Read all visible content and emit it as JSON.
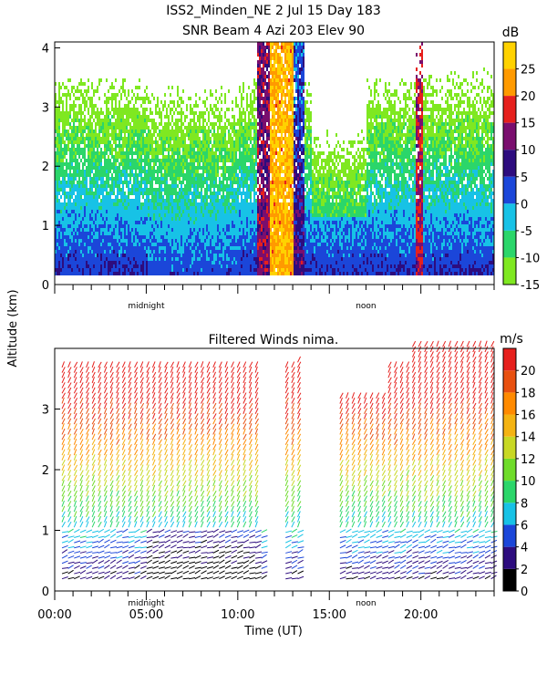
{
  "header": {
    "title_line1": "ISS2_Minden_NE   2 Jul 15 Day 183",
    "title_line2": "SNR Beam 4 Azi 203 Elev 90"
  },
  "colors": {
    "white": "#ffffff",
    "green": "#7fe821",
    "orange": "#ff9a00",
    "red": "#e6201d",
    "navy": "#2d0c7e",
    "blue": "#1b46d9",
    "cyan": "#17c2e6",
    "lime": "#2bd66a"
  },
  "chart_data": [
    {
      "type": "heatmap",
      "title": "SNR Beam 4 Azi 203 Elev 90",
      "ylabel": "Altitude (km)",
      "ylim": [
        0,
        4.1
      ],
      "y_ticks": [
        "0",
        "1",
        "2",
        "3",
        "4"
      ],
      "xlim_hours": [
        0,
        24
      ],
      "x_markers": [
        "midnight",
        "noon"
      ],
      "colorbar": {
        "unit": "dB",
        "range": [
          -15,
          30
        ],
        "tick_labels": [
          "25",
          "20",
          "15",
          "10",
          "5",
          "0",
          "-5",
          "-10",
          "-15"
        ],
        "tick_values": [
          25,
          20,
          15,
          10,
          5,
          0,
          -5,
          -10,
          -15
        ],
        "segments": [
          {
            "from": 25,
            "to": 30,
            "color": "#ffd200"
          },
          {
            "from": 20,
            "to": 25,
            "color": "#ff9a00"
          },
          {
            "from": 15,
            "to": 20,
            "color": "#e6201d"
          },
          {
            "from": 10,
            "to": 15,
            "color": "#7a0e6e"
          },
          {
            "from": 5,
            "to": 10,
            "color": "#2d0c7e"
          },
          {
            "from": 0,
            "to": 5,
            "color": "#1b46d9"
          },
          {
            "from": -5,
            "to": 0,
            "color": "#17c2e6"
          },
          {
            "from": -10,
            "to": -5,
            "color": "#2bd66a"
          },
          {
            "from": -15,
            "to": -10,
            "color": "#7fe821"
          }
        ]
      }
    },
    {
      "type": "scatter",
      "title": "Filtered Winds nima.",
      "xlabel": "Time (UT)",
      "ylabel": "Altitude (km)",
      "xlim_hours": [
        0,
        24
      ],
      "x_ticks": [
        "00:00",
        "05:00",
        "10:00",
        "15:00",
        "20:00"
      ],
      "x_tick_values": [
        0,
        5,
        10,
        15,
        20
      ],
      "x_markers": [
        "midnight",
        "noon"
      ],
      "ylim": [
        0,
        4
      ],
      "y_ticks": [
        "0",
        "1",
        "2",
        "3"
      ],
      "colorbar": {
        "unit": "m/s",
        "range": [
          0,
          22
        ],
        "tick_labels": [
          "20",
          "18",
          "16",
          "14",
          "12",
          "10",
          "8",
          "6",
          "4",
          "2",
          "0"
        ],
        "tick_values": [
          20,
          18,
          16,
          14,
          12,
          10,
          8,
          6,
          4,
          2,
          0
        ],
        "colors": [
          "#000000",
          "#2d0c7e",
          "#1b46d9",
          "#17c2e6",
          "#2bd66a",
          "#6fdc2a",
          "#c8d824",
          "#f4b312",
          "#ff8a00",
          "#e85010",
          "#e6201d"
        ]
      },
      "data_gaps_hours": [
        [
          11.3,
          12.5
        ],
        [
          13.4,
          15.3
        ]
      ]
    }
  ]
}
